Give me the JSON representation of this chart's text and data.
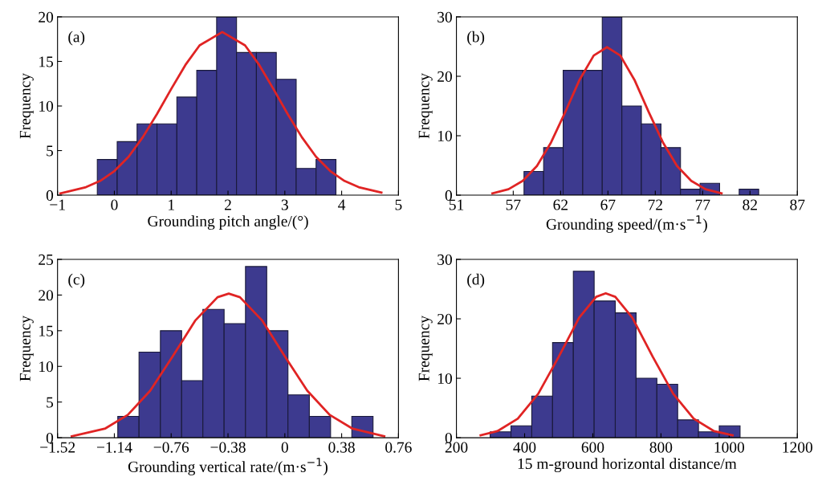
{
  "chart_data": [
    {
      "type": "histogram",
      "xlabel": "Grounding pitch angle/(°)",
      "ylabel": "Frequency",
      "annotations": [
        "(a)"
      ],
      "color": "#3d3a8f",
      "bins": [
        -0.3,
        0.05,
        0.4,
        0.75,
        1.1,
        1.45,
        1.8,
        2.15,
        2.5,
        2.85,
        3.2,
        3.55,
        3.9
      ],
      "values": [
        4,
        6,
        8,
        8,
        11,
        14,
        20,
        16,
        16,
        13,
        3,
        4
      ],
      "series": [
        {
          "type": "line",
          "color": "#e02424",
          "x": [
            -0.95,
            -0.5,
            -0.25,
            0,
            0.25,
            0.5,
            0.75,
            1.0,
            1.25,
            1.5,
            1.9,
            2.3,
            2.55,
            2.8,
            3.05,
            3.3,
            3.55,
            3.8,
            4.05,
            4.3,
            4.7
          ],
          "values": [
            0.2,
            0.9,
            1.6,
            2.7,
            4.3,
            6.5,
            9.1,
            11.9,
            14.6,
            16.8,
            18.3,
            16.8,
            14.6,
            11.9,
            9.1,
            6.5,
            4.3,
            2.7,
            1.6,
            0.9,
            0.3
          ]
        }
      ],
      "xlim": [
        -1,
        5
      ],
      "xticks": [
        -1,
        0,
        1,
        2,
        3,
        4,
        5
      ],
      "ylim": [
        0,
        20
      ],
      "yticks": [
        0,
        5,
        10,
        15,
        20
      ],
      "grid": false
    },
    {
      "type": "histogram",
      "xlabel": "Grounding speed/(m·s$^{−1}$)",
      "ylabel": "Frequency",
      "annotations": [
        "(b)"
      ],
      "color": "#3d3a8f",
      "bins": [
        58.14,
        60.21,
        62.27,
        64.34,
        66.4,
        68.47,
        70.53,
        72.6,
        74.66,
        76.73,
        78.79,
        80.86,
        82.92
      ],
      "values": [
        4,
        8,
        21,
        21,
        30,
        15,
        12,
        8,
        1,
        2,
        0,
        1
      ],
      "series": [
        {
          "type": "line",
          "color": "#e02424",
          "x": [
            54.8,
            56.5,
            58,
            59.5,
            61,
            62.5,
            64,
            65.5,
            66.9,
            68.3,
            69.8,
            71.3,
            72.8,
            74.3,
            75.8,
            77.3,
            79.0
          ],
          "values": [
            0.3,
            1.0,
            2.4,
            4.9,
            8.9,
            14.0,
            19.4,
            23.5,
            24.9,
            23.5,
            19.4,
            14.0,
            8.9,
            4.9,
            2.4,
            1.0,
            0.3
          ]
        }
      ],
      "xlim": [
        51,
        87
      ],
      "xticks": [
        51,
        57,
        62,
        67,
        72,
        77,
        82,
        87
      ],
      "ylim": [
        0,
        30
      ],
      "yticks": [
        0,
        10,
        20,
        30
      ],
      "grid": false
    },
    {
      "type": "histogram",
      "xlabel": "Grounding vertical rate/(m·s$^{−1}$)",
      "ylabel": "Frequency",
      "annotations": [
        "(c)"
      ],
      "color": "#3d3a8f",
      "bins": [
        -1.117,
        -0.975,
        -0.832,
        -0.69,
        -0.548,
        -0.406,
        -0.263,
        -0.121,
        0.021,
        0.164,
        0.306,
        0.448,
        0.59
      ],
      "values": [
        3,
        12,
        15,
        8,
        18,
        16,
        24,
        15,
        6,
        3,
        0,
        3
      ],
      "series": [
        {
          "type": "line",
          "color": "#e02424",
          "x": [
            -1.425,
            -1.2,
            -1.05,
            -0.9,
            -0.75,
            -0.6,
            -0.45,
            -0.375,
            -0.3,
            -0.15,
            0,
            0.15,
            0.3,
            0.45,
            0.665
          ],
          "values": [
            0.2,
            1.3,
            3.2,
            6.6,
            11.4,
            16.4,
            19.7,
            20.2,
            19.7,
            16.4,
            11.4,
            6.6,
            3.2,
            1.3,
            0.2
          ]
        }
      ],
      "xlim": [
        -1.52,
        0.76
      ],
      "xticks": [
        {
          "value": -1.52,
          "label": "−1.52"
        },
        {
          "value": -1.14,
          "label": "−1.14"
        },
        {
          "value": -0.76,
          "label": "−0.76"
        },
        {
          "value": -0.38,
          "label": "−0.38"
        },
        0,
        0.38,
        0.76
      ],
      "ylim": [
        0,
        25
      ],
      "yticks": [
        0,
        5,
        10,
        15,
        20,
        25
      ],
      "grid": false
    },
    {
      "type": "histogram",
      "xlabel": "15 m-ground horizontal distance/m",
      "ylabel": "Frequency",
      "annotations": [
        "(d)"
      ],
      "color": "#3d3a8f",
      "bins": [
        299,
        360,
        421,
        482,
        543,
        604,
        666,
        727,
        788,
        849,
        910,
        971,
        1032
      ],
      "values": [
        1,
        2,
        7,
        16,
        28,
        23,
        21,
        10,
        9,
        3,
        1,
        2
      ],
      "series": [
        {
          "type": "line",
          "color": "#e02424",
          "x": [
            271,
            320,
            380,
            440,
            500,
            560,
            610,
            638,
            666,
            716,
            776,
            836,
            896,
            956,
            1010
          ],
          "values": [
            0.4,
            1.1,
            3.2,
            7.4,
            13.6,
            20.2,
            23.7,
            24.3,
            23.7,
            20.2,
            13.6,
            7.4,
            3.2,
            1.1,
            0.4
          ]
        }
      ],
      "xlim": [
        200,
        1200
      ],
      "xticks": [
        200,
        400,
        600,
        800,
        1000,
        1200
      ],
      "ylim": [
        0,
        30
      ],
      "yticks": [
        0,
        10,
        20,
        30
      ],
      "grid": false
    }
  ]
}
